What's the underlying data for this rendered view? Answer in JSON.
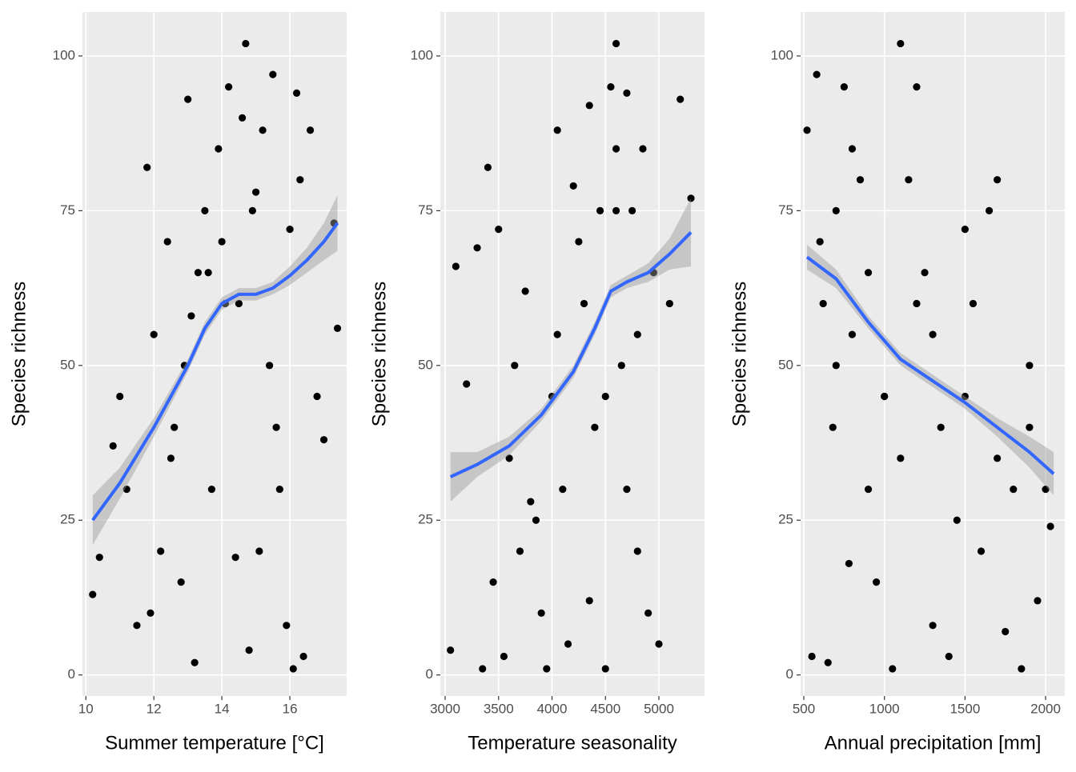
{
  "chart_data": [
    {
      "type": "scatter",
      "x_label": "Summer temperature [°C]",
      "y_label": "Species richness",
      "xlim": [
        9.9,
        17.67
      ],
      "ylim": [
        -3.4,
        107.1
      ],
      "xticks": [
        10,
        12,
        14,
        16
      ],
      "yticks": [
        0,
        25,
        50,
        75,
        100
      ],
      "grid": true,
      "point_color": "#000000",
      "line_color": "#3366ff",
      "band_color": "#999999",
      "points": {
        "x": [
          10.2,
          10.4,
          10.8,
          11,
          11.2,
          11.5,
          11.8,
          12,
          12.2,
          12.4,
          12.6,
          12.8,
          13,
          13.1,
          13.3,
          13.5,
          13.7,
          13.9,
          14,
          14.2,
          14.4,
          14.5,
          14.7,
          14.8,
          15,
          15.2,
          15.4,
          15.5,
          15.7,
          15.9,
          16,
          16.2,
          16.4,
          16.6,
          16.8,
          17,
          17.3,
          17.4,
          11.9,
          12.5,
          13.2,
          14.1,
          14.9,
          15.6,
          16.3,
          12.9,
          13.6,
          15.1,
          16.1,
          14.6
        ],
        "y": [
          13,
          19,
          37,
          45,
          30,
          8,
          82,
          55,
          20,
          70,
          40,
          15,
          93,
          58,
          65,
          75,
          30,
          85,
          70,
          95,
          19,
          60,
          102,
          4,
          78,
          88,
          50,
          97,
          30,
          8,
          72,
          94,
          3,
          88,
          45,
          38,
          73,
          56,
          10,
          35,
          2,
          60,
          75,
          40,
          80,
          50,
          65,
          20,
          1,
          90
        ]
      },
      "smooth": {
        "x": [
          10.2,
          11,
          12,
          13,
          13.5,
          14,
          14.5,
          15,
          15.5,
          16,
          16.5,
          17,
          17.4
        ],
        "y": [
          25,
          31,
          40,
          50,
          56,
          60,
          61.5,
          61.5,
          62.5,
          64.5,
          67,
          70,
          73
        ],
        "lower": [
          21,
          28.5,
          38.5,
          49,
          55,
          59,
          60.5,
          60.5,
          61.5,
          63,
          65,
          67,
          68.5
        ],
        "upper": [
          29,
          33.5,
          41.5,
          51,
          57,
          61,
          62.5,
          62.5,
          63.5,
          66,
          69,
          73,
          77.5
        ]
      }
    },
    {
      "type": "scatter",
      "x_label": "Temperature seasonality",
      "y_label": "Species richness",
      "xlim": [
        2955,
        5427
      ],
      "ylim": [
        -3.4,
        107.1
      ],
      "xticks": [
        3000,
        3500,
        4000,
        4500,
        5000
      ],
      "yticks": [
        0,
        25,
        50,
        75,
        100
      ],
      "grid": true,
      "point_color": "#000000",
      "line_color": "#3366ff",
      "band_color": "#999999",
      "points": {
        "x": [
          3050,
          3100,
          3200,
          3300,
          3350,
          3400,
          3500,
          3550,
          3600,
          3700,
          3750,
          3800,
          3900,
          4000,
          4050,
          4100,
          4150,
          4200,
          4300,
          4350,
          4400,
          4450,
          4500,
          4550,
          4600,
          4650,
          4700,
          4750,
          4800,
          4850,
          4900,
          4950,
          5000,
          5100,
          5200,
          5300,
          3450,
          3650,
          3850,
          4250,
          4500,
          4600,
          4700,
          4800,
          4050,
          3950,
          4600,
          4350
        ],
        "y": [
          4,
          66,
          47,
          69,
          1,
          82,
          72,
          3,
          35,
          20,
          62,
          28,
          10,
          45,
          88,
          30,
          5,
          79,
          60,
          92,
          40,
          75,
          1,
          95,
          102,
          50,
          94,
          75,
          20,
          85,
          10,
          65,
          5,
          60,
          93,
          77,
          15,
          50,
          25,
          70,
          45,
          75,
          30,
          55,
          55,
          1,
          85,
          12
        ]
      },
      "smooth": {
        "x": [
          3050,
          3300,
          3600,
          3900,
          4200,
          4400,
          4550,
          4700,
          4900,
          5100,
          5300
        ],
        "y": [
          32,
          34,
          37,
          42,
          49,
          56,
          62,
          63.5,
          65,
          68,
          71.5
        ],
        "lower": [
          28,
          32,
          35.5,
          41,
          48,
          55,
          61,
          62.5,
          63.5,
          65.5,
          66
        ],
        "upper": [
          36,
          36,
          38.5,
          43,
          50,
          57,
          63,
          64.5,
          66.5,
          70.5,
          77
        ]
      }
    },
    {
      "type": "scatter",
      "x_label": "Annual precipitation [mm]",
      "y_label": "Species richness",
      "xlim": [
        480,
        2119
      ],
      "ylim": [
        -3.4,
        107.1
      ],
      "xticks": [
        500,
        1000,
        1500,
        2000
      ],
      "yticks": [
        0,
        25,
        50,
        75,
        100
      ],
      "grid": true,
      "point_color": "#000000",
      "line_color": "#3366ff",
      "band_color": "#999999",
      "points": {
        "x": [
          520,
          550,
          580,
          620,
          650,
          680,
          700,
          750,
          780,
          800,
          850,
          900,
          950,
          1000,
          1050,
          1100,
          1150,
          1200,
          1250,
          1300,
          1350,
          1400,
          1450,
          1500,
          1550,
          1600,
          1650,
          1700,
          1750,
          1800,
          1850,
          1900,
          1950,
          2000,
          2030,
          600,
          700,
          900,
          1100,
          1300,
          1500,
          1700,
          1900,
          800,
          1000,
          1200
        ],
        "y": [
          88,
          3,
          97,
          60,
          2,
          40,
          75,
          95,
          18,
          55,
          80,
          30,
          15,
          45,
          1,
          102,
          80,
          95,
          65,
          8,
          40,
          3,
          25,
          72,
          60,
          20,
          75,
          80,
          7,
          30,
          1,
          50,
          12,
          30,
          24,
          70,
          50,
          65,
          35,
          55,
          45,
          35,
          40,
          85,
          45,
          60
        ]
      },
      "smooth": {
        "x": [
          520,
          700,
          900,
          1100,
          1300,
          1500,
          1700,
          1900,
          2050
        ],
        "y": [
          67.5,
          64,
          57,
          51,
          47.5,
          44,
          40,
          36,
          32.5
        ],
        "lower": [
          65.5,
          62.5,
          56,
          50,
          46.5,
          43,
          38.5,
          33.5,
          29
        ],
        "upper": [
          69.5,
          65.5,
          58,
          52,
          48.5,
          45,
          41.5,
          38.5,
          36
        ]
      }
    }
  ]
}
